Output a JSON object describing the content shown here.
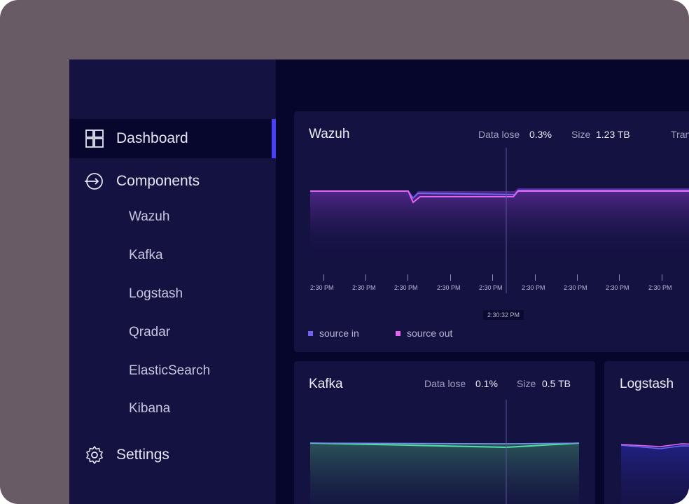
{
  "sidebar": {
    "items": [
      {
        "label": "Dashboard",
        "icon": "dashboard-icon",
        "active": true
      },
      {
        "label": "Components",
        "icon": "components-icon"
      },
      {
        "label": "Settings",
        "icon": "gear-icon"
      }
    ],
    "sub_items": [
      "Wazuh",
      "Kafka",
      "Logstash",
      "Qradar",
      "ElasticSearch",
      "Kibana"
    ]
  },
  "cards": {
    "wazuh": {
      "title": "Wazuh",
      "data_lose_label": "Data lose",
      "data_lose_value": "0.3%",
      "size_label": "Size",
      "size_value": "1.23 TB",
      "extra_label": "Tran",
      "time_labels": [
        "2:30 PM",
        "2:30 PM",
        "2:30 PM",
        "2:30 PM",
        "2:30 PM",
        "2:30 PM",
        "2:30 PM",
        "2:30 PM",
        "2:30 PM"
      ],
      "cursor_label": "2:30:32 PM",
      "legend": [
        {
          "label": "source in",
          "color": "#6e63f2"
        },
        {
          "label": "source out",
          "color": "#e465f0"
        }
      ]
    },
    "kafka": {
      "title": "Kafka",
      "data_lose_label": "Data lose",
      "data_lose_value": "0.1%",
      "size_label": "Size",
      "size_value": "0.5 TB"
    },
    "logstash": {
      "title": "Logstash"
    }
  },
  "colors": {
    "accent": "#4b3ff5",
    "source_in": "#6e63f2",
    "source_out": "#e465f0",
    "kafka_line": "#4fe0b0"
  }
}
